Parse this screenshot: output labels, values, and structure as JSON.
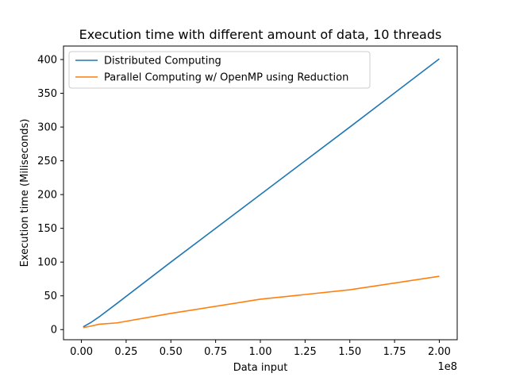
{
  "chart_data": {
    "type": "line",
    "title": "Execution time with different amount of data, 10 threads",
    "xlabel": "Data input",
    "ylabel": "Execution time (Miliseconds)",
    "x_offset_label": "1e8",
    "xlim": [
      -0.1,
      2.1
    ],
    "ylim": [
      -15,
      420
    ],
    "x_ticks": [
      0.0,
      0.25,
      0.5,
      0.75,
      1.0,
      1.25,
      1.5,
      1.75,
      2.0
    ],
    "x_tick_labels": [
      "0.00",
      "0.25",
      "0.50",
      "0.75",
      "1.00",
      "1.25",
      "1.50",
      "1.75",
      "2.00"
    ],
    "y_ticks": [
      0,
      50,
      100,
      150,
      200,
      250,
      300,
      350,
      400
    ],
    "y_tick_labels": [
      "0",
      "50",
      "100",
      "150",
      "200",
      "250",
      "300",
      "350",
      "400"
    ],
    "grid": false,
    "legend_position": "top-left",
    "series": [
      {
        "name": "Distributed Computing",
        "color": "#1f77b4",
        "x": [
          0.01,
          0.05,
          0.1,
          0.2,
          0.5,
          1.0,
          1.5,
          2.0
        ],
        "y": [
          4,
          10,
          19,
          39,
          100,
          200,
          300,
          401
        ]
      },
      {
        "name": "Parallel Computing w/ OpenMP using Reduction",
        "color": "#ff7f0e",
        "x": [
          0.01,
          0.05,
          0.1,
          0.2,
          0.5,
          1.0,
          1.5,
          2.0
        ],
        "y": [
          3,
          5,
          8,
          10,
          24,
          45,
          59,
          79
        ]
      }
    ]
  }
}
